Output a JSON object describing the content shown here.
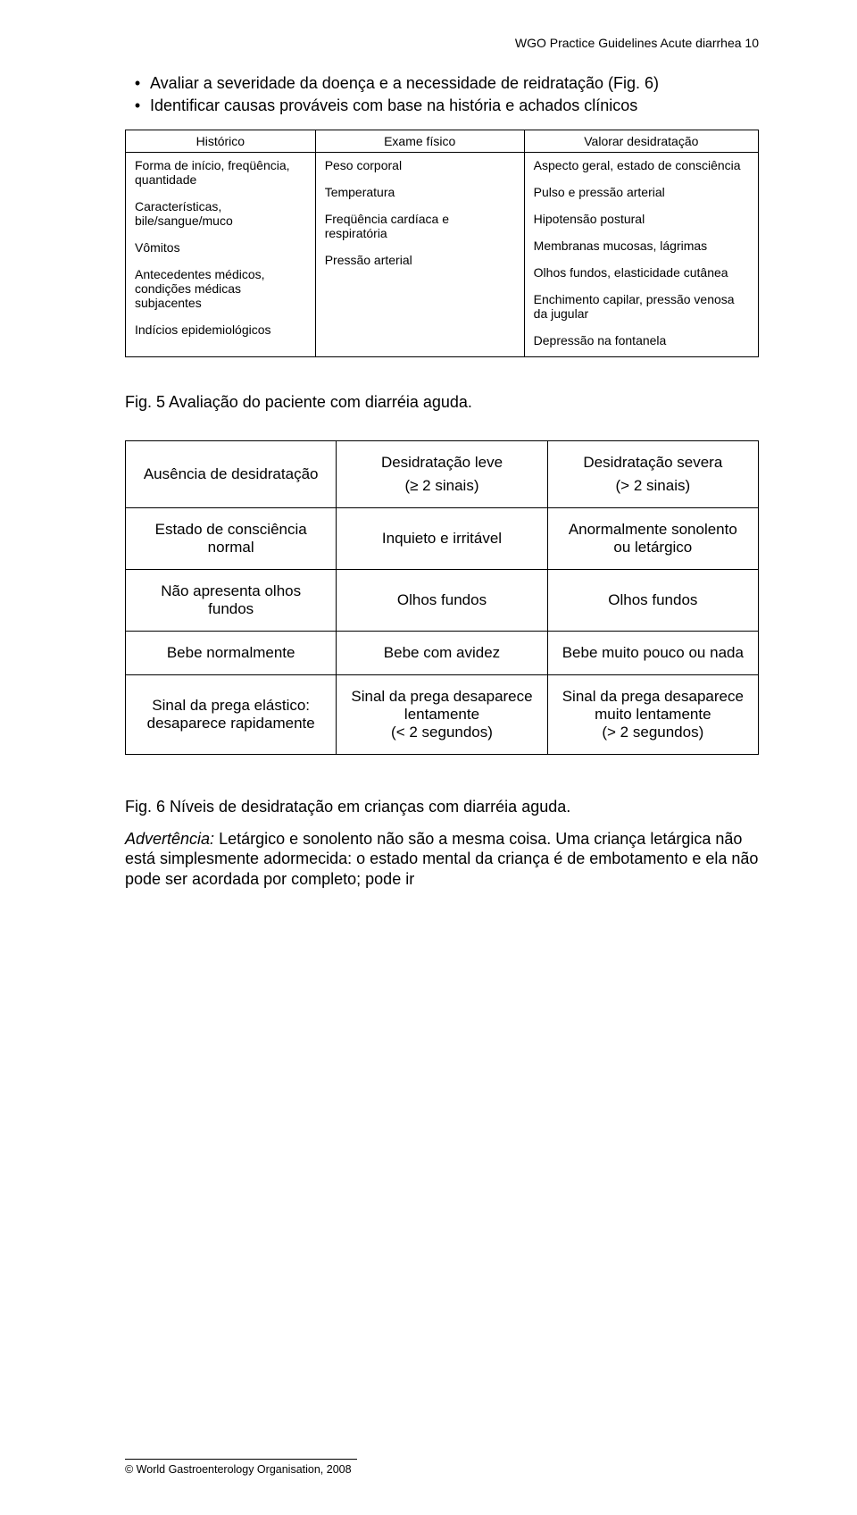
{
  "header": "WGO Practice Guidelines   Acute diarrhea   10",
  "bullets": {
    "b1": "Avaliar a severidade da doença e a necessidade de reidratação (Fig. 6)",
    "b2": "Identificar causas prováveis com base na história e achados clínicos"
  },
  "table1": {
    "headers": {
      "h1": "Histórico",
      "h2": "Exame físico",
      "h3": "Valorar desidratação"
    },
    "col1": {
      "p1": "Forma de início, freqüência, quantidade",
      "p2": "Características, bile/sangue/muco",
      "p3": "Vômitos",
      "p4": "Antecedentes médicos, condições médicas subjacentes",
      "p5": "Indícios epidemiológicos"
    },
    "col2": {
      "p1": "Peso corporal",
      "p2": "Temperatura",
      "p3": "Freqüência cardíaca e respiratória",
      "p4": "Pressão arterial"
    },
    "col3": {
      "p1": "Aspecto geral, estado de consciência",
      "p2": "Pulso e pressão arterial",
      "p3": "Hipotensão postural",
      "p4": "Membranas mucosas, lágrimas",
      "p5": "Olhos fundos, elasticidade cutânea",
      "p6": "Enchimento capilar, pressão venosa da jugular",
      "p7": "Depressão na fontanela"
    }
  },
  "caption1": "Fig. 5   Avaliação do paciente com diarréia aguda.",
  "table2": {
    "r1": {
      "c1a": "Ausência de desidratação",
      "c2a": "Desidratação leve",
      "c2b": "(≥ 2 sinais)",
      "c3a": "Desidratação severa",
      "c3b": "(> 2 sinais)"
    },
    "r2": {
      "c1a": "Estado de consciência normal",
      "c2a": "Inquieto e irritável",
      "c3a": "Anormalmente sonolento ou letárgico"
    },
    "r3": {
      "c1a": "Não apresenta olhos fundos",
      "c2a": "Olhos fundos",
      "c3a": "Olhos fundos"
    },
    "r4": {
      "c1a": "Bebe normalmente",
      "c2a": "Bebe com avidez",
      "c3a": "Bebe muito pouco ou nada"
    },
    "r5": {
      "c1a": "Sinal da prega elástico: desaparece rapidamente",
      "c2a": "Sinal da prega desaparece lentamente",
      "c2b": "(< 2 segundos)",
      "c3a": "Sinal da prega desaparece muito lentamente",
      "c3b": "(> 2 segundos)"
    }
  },
  "caption2": "Fig. 6   Níveis de desidratação em crianças com diarréia aguda.",
  "adv_label": "Advertência:",
  "advert": " Letárgico e sonolento não são a mesma coisa. Uma criança letárgica não está simplesmente adormecida: o estado mental da criança é de embotamento e ela não pode ser acordada por completo; pode ir",
  "footer": "© World Gastroenterology Organisation, 2008"
}
